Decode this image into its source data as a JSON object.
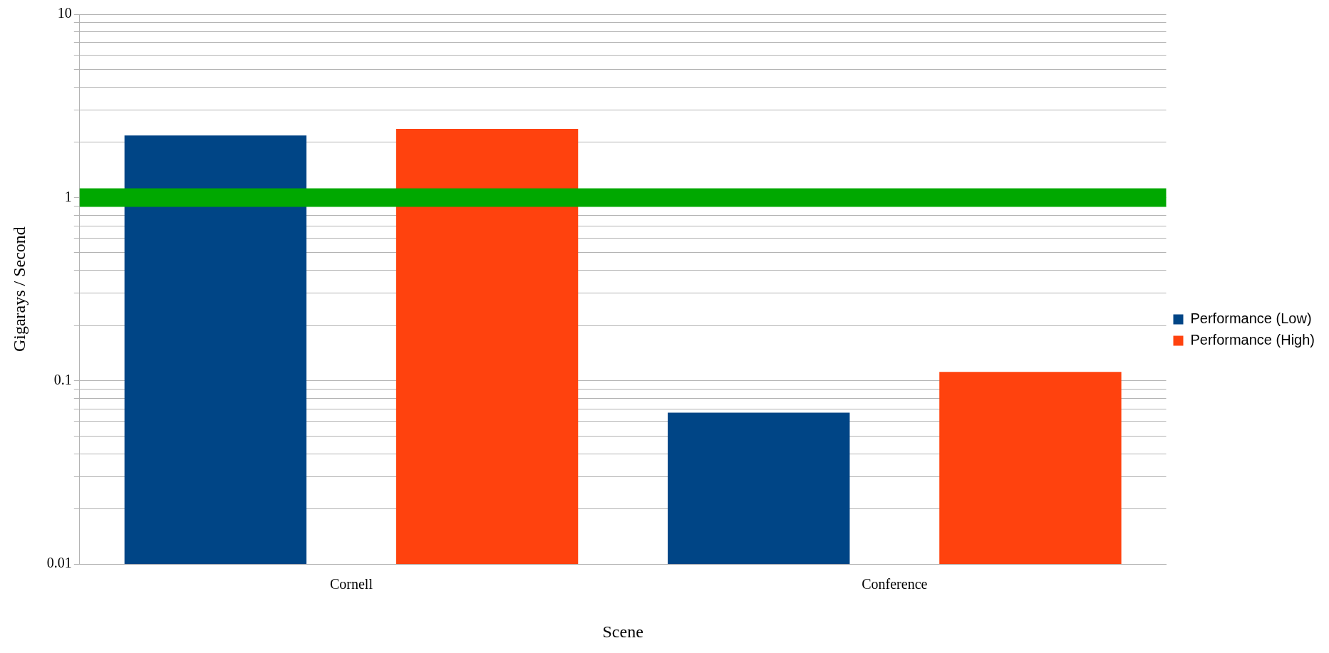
{
  "chart_data": {
    "type": "bar",
    "xlabel": "Scene",
    "ylabel": "Gigarays / Second",
    "categories": [
      "Cornell",
      "Conference"
    ],
    "series": [
      {
        "name": "Performance (Low)",
        "color": "#004586",
        "values": [
          2.18,
          0.067
        ]
      },
      {
        "name": "Performance (High)",
        "color": "#ff420e",
        "values": [
          2.37,
          0.112
        ]
      }
    ],
    "log": "y",
    "ylim": [
      0.01,
      10
    ],
    "yticks": [
      0.01,
      {
        "value": 0.02,
        "label": null
      },
      {
        "value": 0.03,
        "label": null
      },
      {
        "value": 0.04,
        "label": null
      },
      {
        "value": 0.05,
        "label": null
      },
      {
        "value": 0.06,
        "label": null
      },
      {
        "value": 0.07,
        "label": null
      },
      {
        "value": 0.08,
        "label": null
      },
      {
        "value": 0.09,
        "label": null
      },
      0.1,
      {
        "value": 0.2,
        "label": null
      },
      {
        "value": 0.3,
        "label": null
      },
      {
        "value": 0.4,
        "label": null
      },
      {
        "value": 0.5,
        "label": null
      },
      {
        "value": 0.6,
        "label": null
      },
      {
        "value": 0.7,
        "label": null
      },
      {
        "value": 0.8,
        "label": null
      },
      {
        "value": 0.9,
        "label": null
      },
      1,
      {
        "value": 2,
        "label": null
      },
      {
        "value": 3,
        "label": null
      },
      {
        "value": 4,
        "label": null
      },
      {
        "value": 5,
        "label": null
      },
      {
        "value": 6,
        "label": null
      },
      {
        "value": 7,
        "label": null
      },
      {
        "value": 8,
        "label": null
      },
      {
        "value": 9,
        "label": null
      },
      10
    ],
    "ref_lines": [
      {
        "axis": "y",
        "value": 1,
        "color": "#00a800"
      }
    ],
    "grid": "y",
    "legend": "right"
  }
}
